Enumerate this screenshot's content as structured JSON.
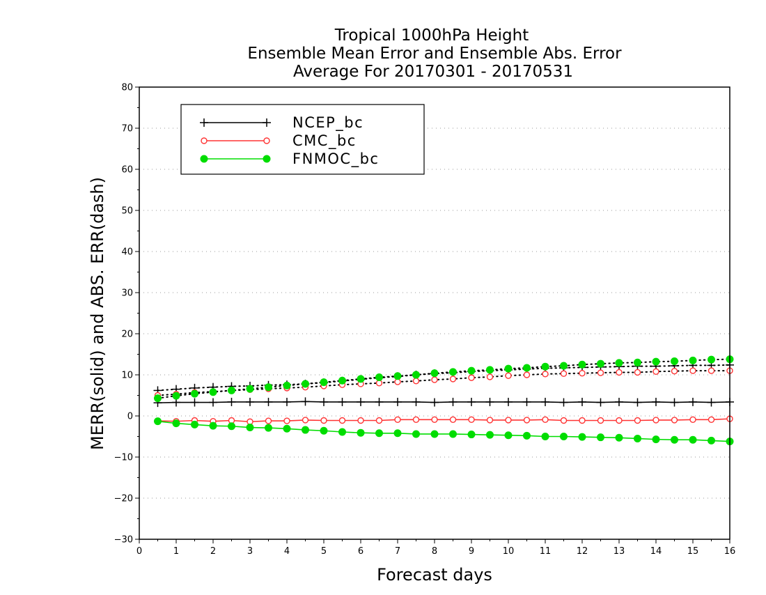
{
  "chart_data": {
    "type": "line",
    "title": [
      "Tropical 1000hPa Height",
      "Ensemble Mean Error and Ensemble Abs. Error",
      "Average For 20170301 - 20170531"
    ],
    "xlabel": "Forecast days",
    "ylabel": "MERR(solid) and ABS. ERR(dash)",
    "xlim": [
      0,
      16
    ],
    "ylim": [
      -30,
      80
    ],
    "xticks": [
      0,
      1,
      2,
      3,
      4,
      5,
      6,
      7,
      8,
      9,
      10,
      11,
      12,
      13,
      14,
      15,
      16
    ],
    "yticks": [
      -30,
      -20,
      -10,
      0,
      10,
      20,
      30,
      40,
      50,
      60,
      70,
      80
    ],
    "grid": "dotted horizontal",
    "legend_position": "top-left",
    "x": [
      0.5,
      1,
      1.5,
      2,
      2.5,
      3,
      3.5,
      4,
      4.5,
      5,
      5.5,
      6,
      6.5,
      7,
      7.5,
      8,
      8.5,
      9,
      9.5,
      10,
      10.5,
      11,
      11.5,
      12,
      12.5,
      13,
      13.5,
      14,
      14.5,
      15,
      15.5,
      16
    ],
    "series": [
      {
        "name": "NCEP_bc",
        "color": "#000000",
        "marker": "plus",
        "merr": [
          3.2,
          3.3,
          3.3,
          3.3,
          3.4,
          3.4,
          3.4,
          3.4,
          3.5,
          3.4,
          3.4,
          3.4,
          3.4,
          3.4,
          3.4,
          3.3,
          3.4,
          3.4,
          3.4,
          3.4,
          3.4,
          3.4,
          3.3,
          3.4,
          3.3,
          3.4,
          3.3,
          3.4,
          3.3,
          3.4,
          3.3,
          3.4
        ],
        "abs_err": [
          6.2,
          6.5,
          6.8,
          7.0,
          7.2,
          7.3,
          7.5,
          7.6,
          7.8,
          8.1,
          8.5,
          8.9,
          9.3,
          9.6,
          10.0,
          10.3,
          10.5,
          10.8,
          11.0,
          11.2,
          11.4,
          11.6,
          11.7,
          11.8,
          11.9,
          12.0,
          12.1,
          12.1,
          12.2,
          12.3,
          12.3,
          12.4
        ]
      },
      {
        "name": "CMC_bc",
        "color": "#ff3333",
        "marker": "open-circle",
        "merr": [
          -1.2,
          -1.3,
          -1.1,
          -1.3,
          -1.1,
          -1.4,
          -1.2,
          -1.2,
          -1.0,
          -1.1,
          -1.1,
          -1.1,
          -1.1,
          -0.9,
          -0.9,
          -0.9,
          -0.9,
          -0.9,
          -1.0,
          -1.0,
          -1.0,
          -0.9,
          -1.1,
          -1.1,
          -1.1,
          -1.1,
          -1.1,
          -1.0,
          -1.0,
          -0.9,
          -0.9,
          -0.7
        ],
        "abs_err": [
          5.0,
          5.3,
          5.7,
          5.9,
          6.2,
          6.4,
          6.6,
          6.8,
          7.0,
          7.3,
          7.6,
          7.8,
          8.0,
          8.3,
          8.5,
          8.8,
          9.0,
          9.3,
          9.5,
          9.8,
          10.0,
          10.2,
          10.3,
          10.4,
          10.5,
          10.6,
          10.6,
          10.8,
          10.9,
          11.0,
          11.0,
          11.0
        ]
      },
      {
        "name": "FNMOC_bc",
        "color": "#00dd00",
        "marker": "filled-circle",
        "merr": [
          -1.3,
          -1.8,
          -2.1,
          -2.4,
          -2.5,
          -2.8,
          -2.9,
          -3.1,
          -3.4,
          -3.6,
          -3.9,
          -4.1,
          -4.2,
          -4.2,
          -4.4,
          -4.4,
          -4.4,
          -4.5,
          -4.6,
          -4.7,
          -4.8,
          -5.0,
          -5.0,
          -5.1,
          -5.2,
          -5.3,
          -5.5,
          -5.7,
          -5.8,
          -5.8,
          -6.0,
          -6.2
        ],
        "abs_err": [
          4.3,
          4.9,
          5.4,
          5.8,
          6.2,
          6.6,
          7.0,
          7.4,
          7.8,
          8.2,
          8.6,
          9.0,
          9.4,
          9.7,
          10.0,
          10.4,
          10.7,
          11.0,
          11.2,
          11.5,
          11.7,
          12.0,
          12.2,
          12.5,
          12.7,
          12.9,
          13.0,
          13.2,
          13.3,
          13.5,
          13.7,
          13.8
        ]
      }
    ]
  }
}
